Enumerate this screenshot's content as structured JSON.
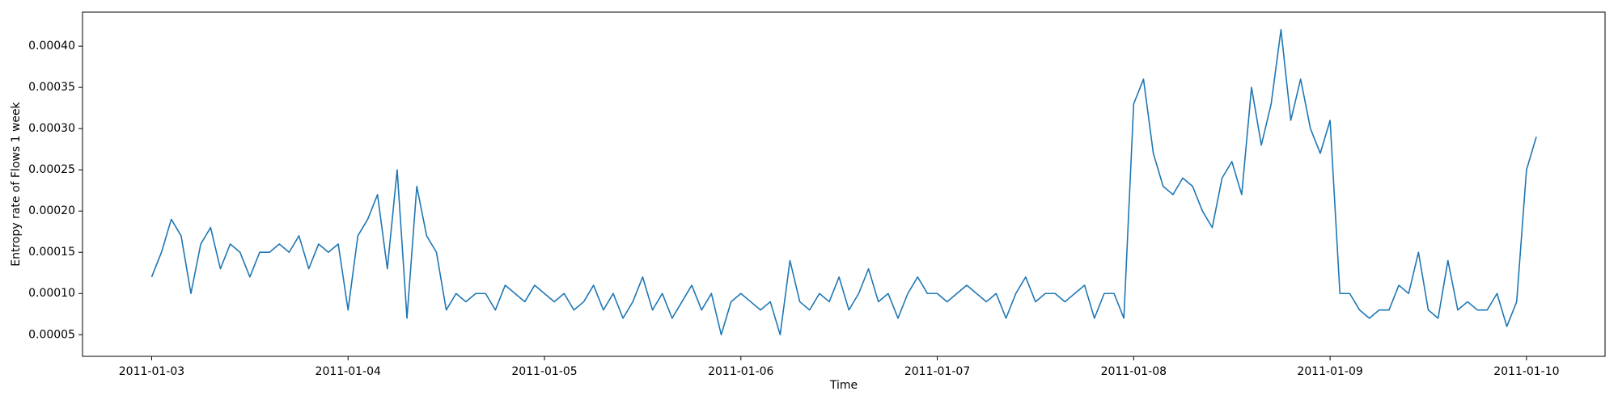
{
  "chart_data": {
    "type": "line",
    "xlabel": "Time",
    "ylabel": "Entropy rate of Flows 1 week",
    "x": [
      14977,
      14977.05,
      14977.1,
      14977.15,
      14977.2,
      14977.25,
      14977.3,
      14977.35,
      14977.4,
      14977.45,
      14977.5,
      14977.55,
      14977.6,
      14977.65,
      14977.7,
      14977.75,
      14977.8,
      14977.85,
      14977.9,
      14977.95,
      14978,
      14978.05,
      14978.1,
      14978.15,
      14978.2,
      14978.25,
      14978.3,
      14978.35,
      14978.4,
      14978.45,
      14978.5,
      14978.55,
      14978.6,
      14978.65,
      14978.7,
      14978.75,
      14978.8,
      14978.85,
      14978.9,
      14978.95,
      14979,
      14979.05,
      14979.1,
      14979.15,
      14979.2,
      14979.25,
      14979.3,
      14979.35,
      14979.4,
      14979.45,
      14979.5,
      14979.55,
      14979.6,
      14979.65,
      14979.7,
      14979.75,
      14979.8,
      14979.85,
      14979.9,
      14979.95,
      14980,
      14980.05,
      14980.1,
      14980.15,
      14980.2,
      14980.25,
      14980.3,
      14980.35,
      14980.4,
      14980.45,
      14980.5,
      14980.55,
      14980.6,
      14980.65,
      14980.7,
      14980.75,
      14980.8,
      14980.85,
      14980.9,
      14980.95,
      14981,
      14981.05,
      14981.1,
      14981.15,
      14981.2,
      14981.25,
      14981.3,
      14981.35,
      14981.4,
      14981.45,
      14981.5,
      14981.55,
      14981.6,
      14981.65,
      14981.7,
      14981.75,
      14981.8,
      14981.85,
      14981.9,
      14981.95,
      14982,
      14982.05,
      14982.1,
      14982.15,
      14982.2,
      14982.25,
      14982.3,
      14982.35,
      14982.4,
      14982.45,
      14982.5,
      14982.55,
      14982.6,
      14982.65,
      14982.7,
      14982.75,
      14982.8,
      14982.85,
      14982.9,
      14982.95,
      14983,
      14983.05,
      14983.1,
      14983.15,
      14983.2,
      14983.25,
      14983.3,
      14983.35,
      14983.4,
      14983.45,
      14983.5,
      14983.55,
      14983.6,
      14983.65,
      14983.7,
      14983.75,
      14983.8,
      14983.85,
      14983.9,
      14983.95,
      14984,
      14984.05
    ],
    "series": [
      {
        "color": "#1f77b4",
        "values": [
          0.00012,
          0.00015,
          0.00019,
          0.00017,
          0.0001,
          0.00016,
          0.00018,
          0.00013,
          0.00016,
          0.00015,
          0.00012,
          0.00015,
          0.00015,
          0.00016,
          0.00015,
          0.00017,
          0.00013,
          0.00016,
          0.00015,
          0.00016,
          8e-05,
          0.00017,
          0.00019,
          0.00022,
          0.00013,
          0.00025,
          7e-05,
          0.00023,
          0.00017,
          0.00015,
          8e-05,
          0.0001,
          9e-05,
          0.0001,
          0.0001,
          8e-05,
          0.00011,
          0.0001,
          9e-05,
          0.00011,
          0.0001,
          9e-05,
          0.0001,
          8e-05,
          9e-05,
          0.00011,
          8e-05,
          0.0001,
          7e-05,
          9e-05,
          0.00012,
          8e-05,
          0.0001,
          7e-05,
          9e-05,
          0.00011,
          8e-05,
          0.0001,
          5e-05,
          9e-05,
          0.0001,
          9e-05,
          8e-05,
          9e-05,
          5e-05,
          0.00014,
          9e-05,
          8e-05,
          0.0001,
          9e-05,
          0.00012,
          8e-05,
          0.0001,
          0.00013,
          9e-05,
          0.0001,
          7e-05,
          0.0001,
          0.00012,
          0.0001,
          0.0001,
          9e-05,
          0.0001,
          0.00011,
          0.0001,
          9e-05,
          0.0001,
          7e-05,
          0.0001,
          0.00012,
          9e-05,
          0.0001,
          0.0001,
          9e-05,
          0.0001,
          0.00011,
          7e-05,
          0.0001,
          0.0001,
          7e-05,
          0.00033,
          0.00036,
          0.00027,
          0.00023,
          0.00022,
          0.00024,
          0.00023,
          0.0002,
          0.00018,
          0.00024,
          0.00026,
          0.00022,
          0.00035,
          0.00028,
          0.00033,
          0.00042,
          0.00031,
          0.00036,
          0.0003,
          0.00027,
          0.00031,
          0.0001,
          0.0001,
          8e-05,
          7e-05,
          8e-05,
          8e-05,
          0.00011,
          0.0001,
          0.00015,
          8e-05,
          7e-05,
          0.00014,
          8e-05,
          9e-05,
          8e-05,
          8e-05,
          0.0001,
          6e-05,
          9e-05,
          0.00025,
          0.00029
        ]
      }
    ],
    "xlim": [
      14976.648,
      14984.4
    ],
    "xticks": [
      {
        "value": 14977,
        "label": "2011-01-03"
      },
      {
        "value": 14978,
        "label": "2011-01-04"
      },
      {
        "value": 14979,
        "label": "2011-01-05"
      },
      {
        "value": 14980,
        "label": "2011-01-06"
      },
      {
        "value": 14981,
        "label": "2011-01-07"
      },
      {
        "value": 14982,
        "label": "2011-01-08"
      },
      {
        "value": 14983,
        "label": "2011-01-09"
      },
      {
        "value": 14984,
        "label": "2011-01-10"
      }
    ],
    "ylim": [
      2.38e-05,
      0.0004413
    ],
    "yticks": [
      {
        "value": 5e-05,
        "label": "0.00005"
      },
      {
        "value": 0.0001,
        "label": "0.00010"
      },
      {
        "value": 0.00015,
        "label": "0.00015"
      },
      {
        "value": 0.0002,
        "label": "0.00020"
      },
      {
        "value": 0.00025,
        "label": "0.00025"
      },
      {
        "value": 0.0003,
        "label": "0.00030"
      },
      {
        "value": 0.00035,
        "label": "0.00035"
      },
      {
        "value": 0.0004,
        "label": "0.00040"
      }
    ],
    "grid": false
  }
}
